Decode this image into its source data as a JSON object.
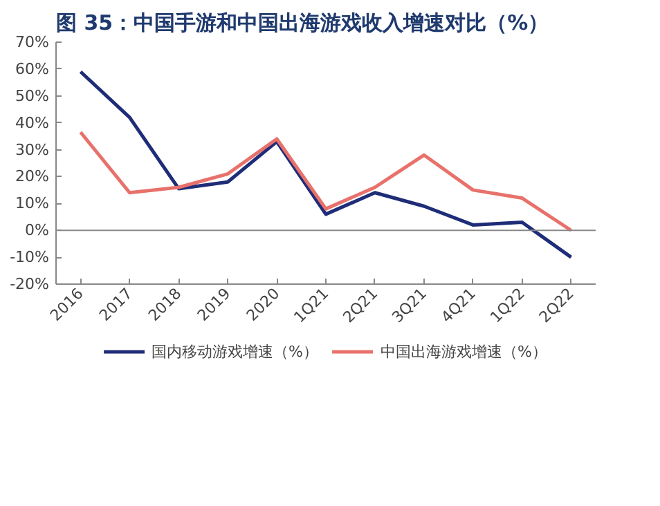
{
  "chart_data": {
    "type": "line",
    "title": "图 35：中国手游和中国出海游戏收入增速对比（%）",
    "categories": [
      "2016",
      "2017",
      "2018",
      "2019",
      "2020",
      "1Q21",
      "2Q21",
      "3Q21",
      "4Q21",
      "1Q22",
      "2Q22"
    ],
    "series": [
      {
        "name": "国内移动游戏增速（%）",
        "color": "#1f2d78",
        "values": [
          59,
          42,
          15.5,
          18,
          33,
          6,
          14,
          9,
          2,
          3,
          -10
        ]
      },
      {
        "name": "中国出海游戏增速（%）",
        "color": "#e8716b",
        "values": [
          36.5,
          14,
          16,
          21,
          34,
          8,
          16,
          28,
          15,
          12,
          0
        ]
      }
    ],
    "ylim": [
      -20,
      70
    ],
    "yticks": [
      {
        "value": -20,
        "label": "-20%"
      },
      {
        "value": -10,
        "label": "-10%"
      },
      {
        "value": 0,
        "label": "0%"
      },
      {
        "value": 10,
        "label": "10%"
      },
      {
        "value": 20,
        "label": "20%"
      },
      {
        "value": 30,
        "label": "30%"
      },
      {
        "value": 40,
        "label": "40%"
      },
      {
        "value": 50,
        "label": "50%"
      },
      {
        "value": 60,
        "label": "60%"
      },
      {
        "value": 70,
        "label": "70%"
      }
    ],
    "ref_lines": [
      {
        "axis": "y",
        "value": 0,
        "color": "#888888"
      }
    ],
    "grid": false,
    "legend": "bottom",
    "marker": "none",
    "line_style": "solid"
  }
}
